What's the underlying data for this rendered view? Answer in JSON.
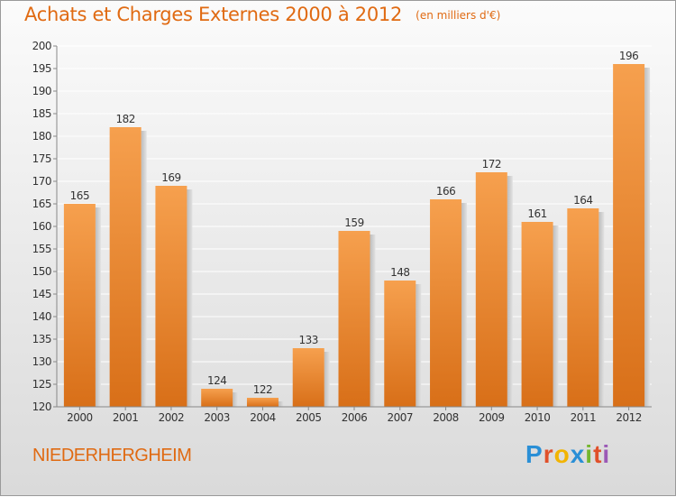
{
  "header": {
    "title": "Achats et Charges Externes 2000 à 2012",
    "subtitle": "(en milliers d'€)"
  },
  "footer": {
    "commune": "NIEDERHERGHEIM",
    "logo_text": "Proxiti",
    "logo_colors": [
      "#2a8fd6",
      "#e0502a",
      "#f2b400",
      "#2a8fd6",
      "#74b62e",
      "#e0502a",
      "#9b59b6"
    ]
  },
  "colors": {
    "bar_top": "#f6a04e",
    "bar_bottom": "#d86f18",
    "bar_side": "#c8c8c8",
    "accent": "#e06a12",
    "grid": "#ffffff",
    "axis_text": "#333333"
  },
  "chart_data": {
    "type": "bar",
    "title": "Achats et Charges Externes 2000 à 2012",
    "subtitle": "(en milliers d'€)",
    "xlabel": "",
    "ylabel": "",
    "categories": [
      "2000",
      "2001",
      "2002",
      "2003",
      "2004",
      "2005",
      "2006",
      "2007",
      "2008",
      "2009",
      "2010",
      "2011",
      "2012"
    ],
    "values": [
      165,
      182,
      169,
      124,
      122,
      133,
      159,
      148,
      166,
      172,
      161,
      164,
      196
    ],
    "ylim": [
      120,
      200
    ],
    "yticks": [
      120,
      125,
      130,
      135,
      140,
      145,
      150,
      155,
      160,
      165,
      170,
      175,
      180,
      185,
      190,
      195,
      200
    ],
    "grid": true,
    "legend": "none"
  }
}
